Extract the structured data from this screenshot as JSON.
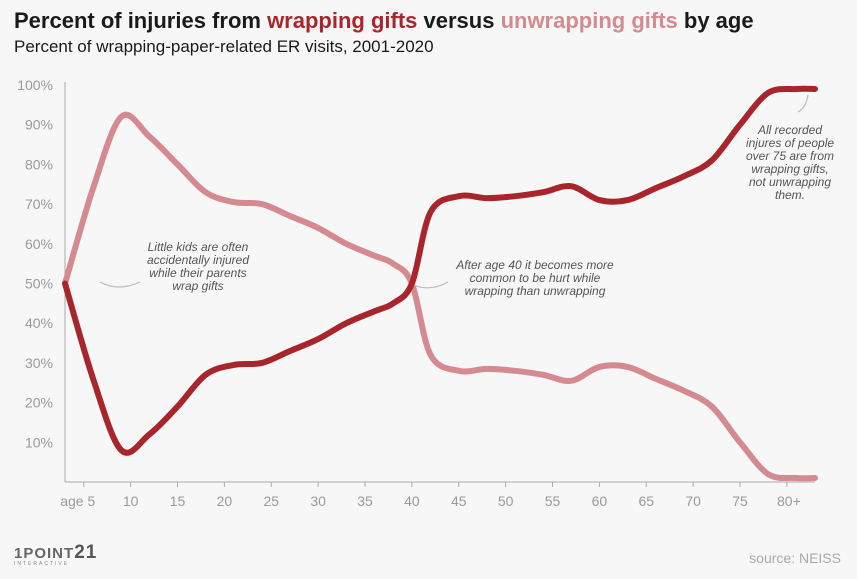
{
  "header": {
    "title_prefix": "Percent of injuries from ",
    "title_wrap": "wrapping gifts",
    "title_mid": " versus ",
    "title_unwrap": "unwrapping gifts",
    "title_suffix": " by age",
    "subtitle": "Percent of wrapping-paper-related ER visits, 2001-2020"
  },
  "footer": {
    "logo_main": "1POINT",
    "logo_num": "21",
    "logo_sub": "INTERACTIVE",
    "source": "source: NEISS"
  },
  "colors": {
    "wrapping": "#a8262b",
    "unwrapping": "#d48a8f"
  },
  "chart_data": {
    "type": "line",
    "x_tick_labels": [
      "age 5",
      "10",
      "15",
      "20",
      "25",
      "30",
      "35",
      "40",
      "45",
      "50",
      "55",
      "60",
      "65",
      "70",
      "75",
      "80+"
    ],
    "y_tick_labels": [
      "10%",
      "20%",
      "30%",
      "40%",
      "50%",
      "60%",
      "70%",
      "80%",
      "90%",
      "100%"
    ],
    "xlim": [
      3,
      83
    ],
    "ylim": [
      0,
      100
    ],
    "grid": false,
    "series": [
      {
        "name": "wrapping gifts",
        "x": [
          3,
          6,
          9,
          12,
          15,
          18,
          21,
          24,
          27,
          30,
          33,
          36,
          38,
          40,
          42,
          45,
          48,
          51,
          54,
          57,
          60,
          63,
          66,
          69,
          72,
          75,
          78,
          81,
          83
        ],
        "values": [
          50,
          26,
          8,
          12,
          19,
          27,
          29.5,
          30,
          33,
          36,
          40,
          43,
          45,
          50,
          68,
          72,
          71.5,
          72,
          73,
          74.5,
          71,
          71,
          74,
          77,
          81,
          90,
          98,
          99,
          99
        ]
      },
      {
        "name": "unwrapping gifts",
        "x": [
          3,
          6,
          9,
          12,
          15,
          18,
          21,
          24,
          27,
          30,
          33,
          36,
          38,
          40,
          42,
          45,
          48,
          51,
          54,
          57,
          60,
          63,
          66,
          69,
          72,
          75,
          78,
          81,
          83
        ],
        "values": [
          50,
          74,
          92,
          87,
          80,
          73,
          70.5,
          70,
          67,
          64,
          60,
          57,
          55,
          50,
          32,
          28,
          28.5,
          28,
          27,
          25.5,
          29,
          29,
          26,
          23,
          19,
          10,
          2,
          1,
          1
        ]
      }
    ],
    "annotations": [
      {
        "lines": [
          "Little kids are often",
          "accidentally injured",
          "while their parents",
          "wrap gifts"
        ]
      },
      {
        "lines": [
          "After age 40 it becomes more",
          "common to be hurt while",
          "wrapping than unwrapping"
        ]
      },
      {
        "lines": [
          "All recorded",
          "injures of people",
          "over 75 are from",
          "wrapping gifts,",
          "not unwrapping",
          "them."
        ]
      }
    ]
  }
}
